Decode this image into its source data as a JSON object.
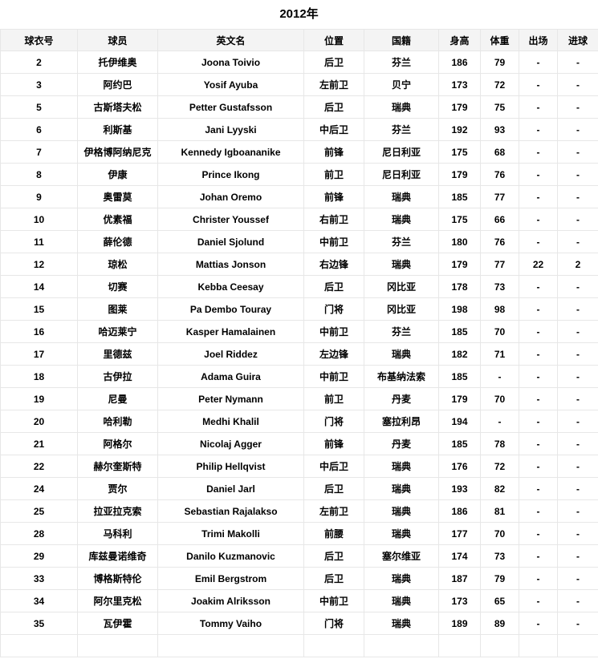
{
  "title": "2012年",
  "table": {
    "columns": [
      "球衣号",
      "球员",
      "英文名",
      "位置",
      "国籍",
      "身高",
      "体重",
      "出场",
      "进球"
    ],
    "rows": [
      [
        "2",
        "托伊维奥",
        "Joona Toivio",
        "后卫",
        "芬兰",
        "186",
        "79",
        "-",
        "-"
      ],
      [
        "3",
        "阿约巴",
        "Yosif Ayuba",
        "左前卫",
        "贝宁",
        "173",
        "72",
        "-",
        "-"
      ],
      [
        "5",
        "古斯塔夫松",
        "Petter Gustafsson",
        "后卫",
        "瑞典",
        "179",
        "75",
        "-",
        "-"
      ],
      [
        "6",
        "利斯基",
        "Jani Lyyski",
        "中后卫",
        "芬兰",
        "192",
        "93",
        "-",
        "-"
      ],
      [
        "7",
        "伊格博阿纳尼克",
        "Kennedy Igboananike",
        "前锋",
        "尼日利亚",
        "175",
        "68",
        "-",
        "-"
      ],
      [
        "8",
        "伊康",
        "Prince Ikong",
        "前卫",
        "尼日利亚",
        "179",
        "76",
        "-",
        "-"
      ],
      [
        "9",
        "奥雷莫",
        "Johan Oremo",
        "前锋",
        "瑞典",
        "185",
        "77",
        "-",
        "-"
      ],
      [
        "10",
        "优素福",
        "Christer Youssef",
        "右前卫",
        "瑞典",
        "175",
        "66",
        "-",
        "-"
      ],
      [
        "11",
        "薛伦德",
        "Daniel Sjolund",
        "中前卫",
        "芬兰",
        "180",
        "76",
        "-",
        "-"
      ],
      [
        "12",
        "琼松",
        "Mattias Jonson",
        "右边锋",
        "瑞典",
        "179",
        "77",
        "22",
        "2"
      ],
      [
        "14",
        "切赛",
        "Kebba Ceesay",
        "后卫",
        "冈比亚",
        "178",
        "73",
        "-",
        "-"
      ],
      [
        "15",
        "图莱",
        "Pa Dembo Touray",
        "门将",
        "冈比亚",
        "198",
        "98",
        "-",
        "-"
      ],
      [
        "16",
        "哈迈莱宁",
        "Kasper Hamalainen",
        "中前卫",
        "芬兰",
        "185",
        "70",
        "-",
        "-"
      ],
      [
        "17",
        "里德兹",
        "Joel Riddez",
        "左边锋",
        "瑞典",
        "182",
        "71",
        "-",
        "-"
      ],
      [
        "18",
        "古伊拉",
        "Adama Guira",
        "中前卫",
        "布基纳法索",
        "185",
        "-",
        "-",
        "-"
      ],
      [
        "19",
        "尼曼",
        "Peter Nymann",
        "前卫",
        "丹麦",
        "179",
        "70",
        "-",
        "-"
      ],
      [
        "20",
        "哈利勒",
        "Medhi Khalil",
        "门将",
        "塞拉利昂",
        "194",
        "-",
        "-",
        "-"
      ],
      [
        "21",
        "阿格尔",
        "Nicolaj Agger",
        "前锋",
        "丹麦",
        "185",
        "78",
        "-",
        "-"
      ],
      [
        "22",
        "赫尔奎斯特",
        "Philip Hellqvist",
        "中后卫",
        "瑞典",
        "176",
        "72",
        "-",
        "-"
      ],
      [
        "24",
        "贾尔",
        "Daniel Jarl",
        "后卫",
        "瑞典",
        "193",
        "82",
        "-",
        "-"
      ],
      [
        "25",
        "拉亚拉克索",
        "Sebastian Rajalakso",
        "左前卫",
        "瑞典",
        "186",
        "81",
        "-",
        "-"
      ],
      [
        "28",
        "马科利",
        "Trimi Makolli",
        "前腰",
        "瑞典",
        "177",
        "70",
        "-",
        "-"
      ],
      [
        "29",
        "库兹曼诺维奇",
        "Danilo Kuzmanovic",
        "后卫",
        "塞尔维亚",
        "174",
        "73",
        "-",
        "-"
      ],
      [
        "33",
        "博格斯特伦",
        "Emil Bergstrom",
        "后卫",
        "瑞典",
        "187",
        "79",
        "-",
        "-"
      ],
      [
        "34",
        "阿尔里克松",
        "Joakim Alriksson",
        "中前卫",
        "瑞典",
        "173",
        "65",
        "-",
        "-"
      ],
      [
        "35",
        "瓦伊霍",
        "Tommy Vaiho",
        "门将",
        "瑞典",
        "189",
        "89",
        "-",
        "-"
      ]
    ]
  },
  "colors": {
    "header_bg": "#f4f4f4",
    "border": "#e7e7e7",
    "text": "#000000",
    "row_bg": "#ffffff"
  }
}
